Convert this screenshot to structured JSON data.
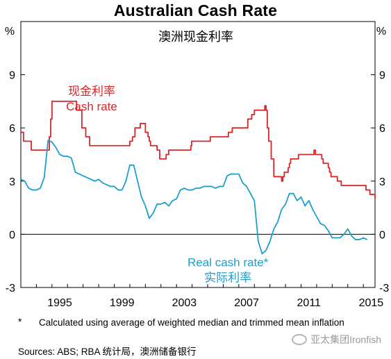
{
  "chart_data": {
    "type": "line",
    "title": "Australian Cash Rate",
    "subtitle": "澳洲现金利率",
    "ylabel_left": "%",
    "ylabel_right": "%",
    "ylim": [
      -3,
      12
    ],
    "yticks": [
      -3,
      0,
      3,
      6,
      9
    ],
    "xlim": [
      1993.0,
      2015.75
    ],
    "xticks": [
      1995,
      1999,
      2003,
      2007,
      2011,
      2015
    ],
    "grid": false,
    "zero_line": true,
    "series": [
      {
        "name": "Cash rate",
        "annotation_lines": [
          "现金利率",
          "Cash rate"
        ],
        "color": "#d62728",
        "step": true,
        "x": [
          1993.0,
          1993.17,
          1993.5,
          1993.67,
          1994.67,
          1994.83,
          1994.92,
          1995.0,
          1996.58,
          1996.92,
          1997.17,
          1997.42,
          1997.67,
          1999.83,
          2000.0,
          2000.17,
          2000.33,
          2000.67,
          2001.0,
          2001.17,
          2001.25,
          2001.33,
          2001.75,
          2001.92,
          2002.33,
          2002.5,
          2003.42,
          2003.92,
          2003.97,
          2005.17,
          2006.33,
          2006.58,
          2007.58,
          2007.83,
          2008.0,
          2008.67,
          2008.75,
          2008.83,
          2008.92,
          2009.08,
          2009.25,
          2009.75,
          2009.83,
          2009.92,
          2010.17,
          2010.25,
          2010.33,
          2010.83,
          2011.83,
          2011.92,
          2012.33,
          2012.42,
          2012.75,
          2012.83,
          2012.92,
          2013.33,
          2013.58,
          2015.17,
          2015.42,
          2015.75
        ],
        "values": [
          5.75,
          5.25,
          5.25,
          4.75,
          4.75,
          5.5,
          6.5,
          7.5,
          7.0,
          6.0,
          5.5,
          5.0,
          5.0,
          5.0,
          5.25,
          5.5,
          6.0,
          6.25,
          5.75,
          5.5,
          5.25,
          5.0,
          4.75,
          4.25,
          4.5,
          4.75,
          4.75,
          5.0,
          5.25,
          5.5,
          5.75,
          6.0,
          6.5,
          6.75,
          7.0,
          7.25,
          7.0,
          6.0,
          5.25,
          4.25,
          3.25,
          3.0,
          3.25,
          3.5,
          3.75,
          4.0,
          4.25,
          4.5,
          4.75,
          4.5,
          4.25,
          4.0,
          3.75,
          3.5,
          3.25,
          3.0,
          2.75,
          2.5,
          2.25,
          2.0
        ]
      },
      {
        "name": "Real cash rate*",
        "annotation_lines": [
          "Real cash rate*",
          "实际利率"
        ],
        "color": "#1a9fd1",
        "step": false,
        "x": [
          1993.0,
          1993.25,
          1993.5,
          1993.75,
          1994.0,
          1994.25,
          1994.5,
          1994.75,
          1995.0,
          1995.25,
          1995.5,
          1995.75,
          1996.0,
          1996.25,
          1996.5,
          1996.75,
          1997.0,
          1997.25,
          1997.5,
          1997.75,
          1998.0,
          1998.25,
          1998.5,
          1998.75,
          1999.0,
          1999.25,
          1999.5,
          1999.75,
          2000.0,
          2000.25,
          2000.5,
          2000.75,
          2001.0,
          2001.25,
          2001.5,
          2001.75,
          2002.0,
          2002.25,
          2002.5,
          2002.75,
          2003.0,
          2003.25,
          2003.5,
          2003.75,
          2004.0,
          2004.25,
          2004.5,
          2004.75,
          2005.0,
          2005.25,
          2005.5,
          2005.75,
          2006.0,
          2006.25,
          2006.5,
          2006.75,
          2007.0,
          2007.25,
          2007.5,
          2007.75,
          2008.0,
          2008.25,
          2008.5,
          2008.75,
          2009.0,
          2009.25,
          2009.5,
          2009.75,
          2010.0,
          2010.25,
          2010.5,
          2010.75,
          2011.0,
          2011.25,
          2011.5,
          2011.75,
          2012.0,
          2012.25,
          2012.5,
          2012.75,
          2013.0,
          2013.25,
          2013.5,
          2013.75,
          2014.0,
          2014.25,
          2014.5,
          2014.75,
          2015.0,
          2015.25
        ],
        "values": [
          3.1,
          3.0,
          2.6,
          2.5,
          2.5,
          2.6,
          3.2,
          5.3,
          5.2,
          4.9,
          4.5,
          4.4,
          4.4,
          4.3,
          3.5,
          3.4,
          3.3,
          3.2,
          3.1,
          3.0,
          3.1,
          2.9,
          2.8,
          2.7,
          2.7,
          2.5,
          2.5,
          3.0,
          3.9,
          3.9,
          3.0,
          2.1,
          1.6,
          0.9,
          1.2,
          1.7,
          1.7,
          1.8,
          1.6,
          1.9,
          2.0,
          2.5,
          2.6,
          2.5,
          2.5,
          2.6,
          2.6,
          2.7,
          2.7,
          2.7,
          2.6,
          2.7,
          2.7,
          3.3,
          3.4,
          3.4,
          3.4,
          2.9,
          2.7,
          2.3,
          1.9,
          -0.4,
          -1.1,
          -0.9,
          -0.4,
          0.3,
          0.7,
          1.4,
          1.7,
          2.3,
          2.3,
          1.9,
          2.1,
          1.6,
          1.9,
          1.4,
          1.0,
          0.6,
          0.5,
          0.2,
          -0.2,
          -0.2,
          -0.2,
          0.0,
          0.3,
          -0.1,
          -0.3,
          -0.3,
          -0.2,
          -0.3
        ]
      }
    ],
    "footnote_marker": "*",
    "footnote": "Calculated using average of weighted median and trimmed mean inflation",
    "sources": "Sources:  ABS; RBA 统计局，澳洲储备银行"
  },
  "watermark": "亚太集团Ironfish",
  "colors": {
    "frame": "#000000",
    "cash_rate": "#d62728",
    "real_cash_rate": "#1a9fd1"
  }
}
